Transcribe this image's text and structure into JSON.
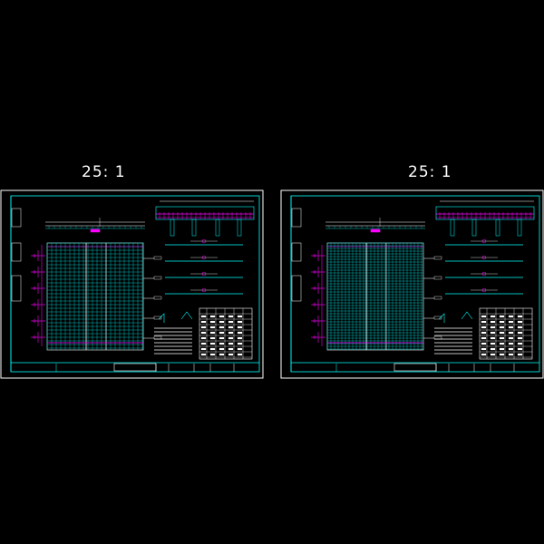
{
  "sheets": [
    {
      "scale_label": "25: 1"
    },
    {
      "scale_label": "25: 1"
    }
  ],
  "colors": {
    "background": "#000000",
    "frame": "#ffffff",
    "border": "#00ffff",
    "grid": "#00c8c8",
    "rebar": "#ff00ff",
    "table": "#ffffff"
  }
}
